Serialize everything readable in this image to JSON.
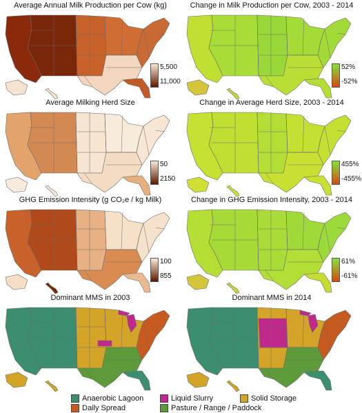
{
  "panels": [
    {
      "title": "Average Annual Milk Production per Cow (kg)",
      "scale": {
        "top": "5,500",
        "bottom": "11,000",
        "grad": [
          "#f8e7d2",
          "#5c1a00"
        ]
      },
      "fills": {
        "west": "#8b2a0a",
        "mtn": "#7a2608",
        "plains": "#c8622a",
        "midwest": "#cf6d33",
        "south": "#f2d6bd",
        "east": "#c96a35",
        "fl": "#c25a28",
        "ak": "#f6e3cf",
        "hi": "#f6e3cf"
      }
    },
    {
      "title": "Change in Milk Production per Cow, 2003 - 2014",
      "scale": {
        "top": "52%",
        "bottom": "-52%",
        "grad": [
          "#86e23a",
          "#d44a10"
        ]
      },
      "fills": {
        "west": "#bfe033",
        "mtn": "#a8dc36",
        "plains": "#9ad83a",
        "midwest": "#a5db37",
        "south": "#b9df34",
        "east": "#a2da38",
        "fl": "#b5de35",
        "ak": "#d3c63a",
        "hi": "#c9d53a"
      }
    },
    {
      "title": "Average Milking Herd Size",
      "scale": {
        "top": "50",
        "bottom": "2150",
        "grad": [
          "#f8e9d8",
          "#5c1a00"
        ]
      },
      "fills": {
        "west": "#e3a46b",
        "mtn": "#d38a52",
        "plains": "#f6e5d0",
        "midwest": "#f8ebdc",
        "south": "#f4dcc2",
        "east": "#f7e6d3",
        "fl": "#e6b07e",
        "ak": "#f8ebdc",
        "hi": "#f8ebdc"
      }
    },
    {
      "title": "Change in Average Herd Size, 2003 - 2014",
      "scale": {
        "top": "455%",
        "bottom": "-455%",
        "grad": [
          "#86e23a",
          "#d44a10"
        ]
      },
      "fills": {
        "west": "#c6e132",
        "mtn": "#bfe033",
        "plains": "#b4de36",
        "midwest": "#c3e033",
        "south": "#c9e032",
        "east": "#c6df33",
        "fl": "#c9df32",
        "ak": "#cfe032",
        "hi": "#cfe032"
      }
    },
    {
      "title": "GHG Emission Intensity (g CO₂e / kg Milk)",
      "scale": {
        "top": "100",
        "bottom": "855",
        "grad": [
          "#f8e9d8",
          "#5c1a00"
        ]
      },
      "fills": {
        "west": "#c9622a",
        "mtn": "#b04a1a",
        "plains": "#e7b184",
        "midwest": "#f6e0c8",
        "south": "#d98b52",
        "east": "#f6e2cc",
        "fl": "#e9ba8f",
        "ak": "#f5dec5",
        "hi": "#7a2608"
      }
    },
    {
      "title": "Change in GHG Emission Intensity, 2003 - 2014",
      "scale": {
        "top": "61%",
        "bottom": "-61%",
        "grad": [
          "#86e23a",
          "#d44a10"
        ]
      },
      "fills": {
        "west": "#b5de35",
        "mtn": "#a6db37",
        "plains": "#a9dc36",
        "midwest": "#9fda38",
        "south": "#b3de35",
        "east": "#9cd93a",
        "fl": "#c7dc32",
        "ak": "#d3c63a",
        "hi": "#c9d53a"
      }
    },
    {
      "title": "Dominant MMS in 2003",
      "scale": null,
      "fills": {
        "west": "#3b8f6e",
        "mtn": "#3b8f6e",
        "plains": "#d4a428",
        "midwest": "#d4a428",
        "south": "#5c9a3a",
        "east": "#c75a1e",
        "fl": "#3b8f6e",
        "ak": "#d4a428",
        "hi": "#d4a428"
      }
    },
    {
      "title": "Dominant MMS in 2014",
      "scale": null,
      "fills": {
        "west": "#3b8f6e",
        "mtn": "#3b8f6e",
        "plains": "#d4a428",
        "midwest": "#d4a428",
        "south": "#5c9a3a",
        "east": "#c75a1e",
        "fl": "#3b8f6e",
        "ak": "#d4a428",
        "hi": "#d4a428"
      }
    }
  ],
  "legend": [
    {
      "label": "Anaerobic Lagoon",
      "color": "#3b8f6e"
    },
    {
      "label": "Liquid Slurry",
      "color": "#c1288c"
    },
    {
      "label": "Solid Storage",
      "color": "#d4a428"
    },
    {
      "label": "Daily Spread",
      "color": "#c75a1e"
    },
    {
      "label": "Pasture / Range / Paddock",
      "color": "#5c9a3a"
    }
  ]
}
